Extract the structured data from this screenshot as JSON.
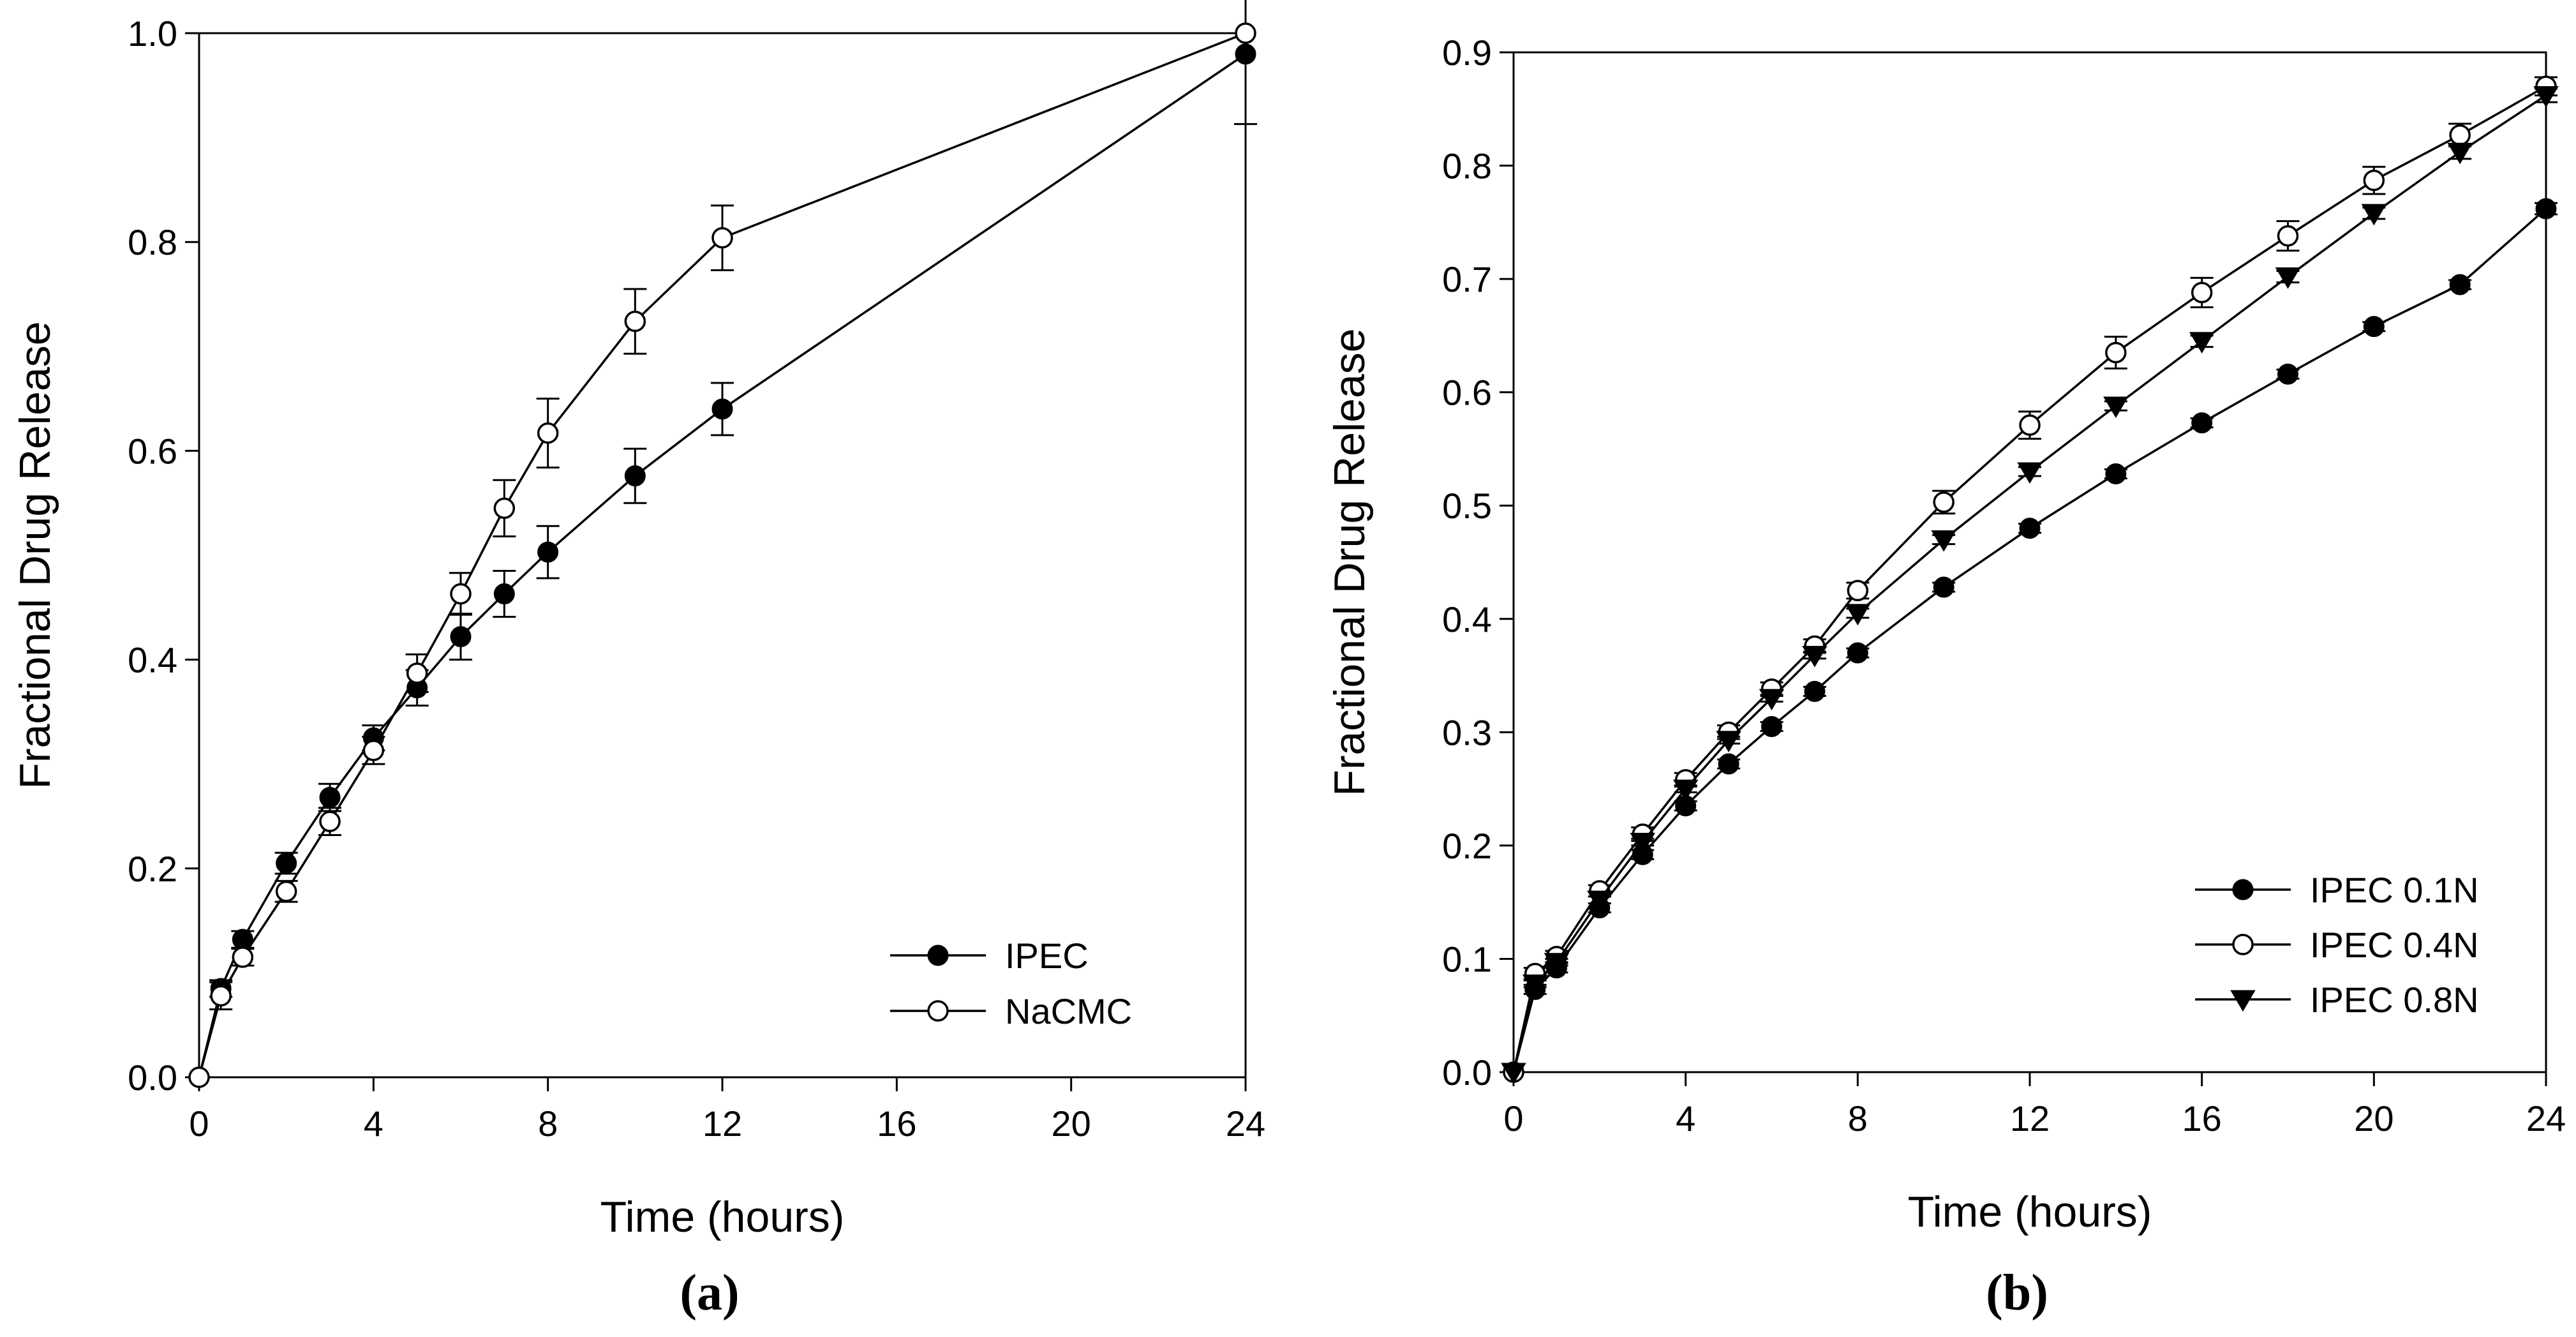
{
  "colors": {
    "axis": "#000000",
    "line": "#000000",
    "filled_marker": "#000000",
    "open_marker": "#ffffff"
  },
  "chart_data": [
    {
      "id": "a",
      "panel_label": "(a)",
      "type": "line",
      "xlabel": "Time (hours)",
      "ylabel": "Fractional Drug Release",
      "xlim": [
        0,
        24
      ],
      "ylim": [
        0,
        1.0
      ],
      "x_ticks": [
        0,
        4,
        8,
        12,
        16,
        20,
        24
      ],
      "y_ticks": [
        0.0,
        0.2,
        0.4,
        0.6,
        0.8,
        1.0
      ],
      "y_tick_labels": [
        "0.0",
        "0.2",
        "0.4",
        "0.6",
        "0.8",
        "1.0"
      ],
      "legend_position": "bottom-right",
      "series": [
        {
          "name": "IPEC",
          "marker": "filled-circle",
          "x": [
            0,
            0.5,
            1,
            2,
            3,
            4,
            5,
            6,
            7,
            8,
            10,
            12,
            24
          ],
          "y": [
            0.0,
            0.085,
            0.132,
            0.205,
            0.268,
            0.325,
            0.373,
            0.422,
            0.463,
            0.503,
            0.576,
            0.64,
            0.98
          ],
          "error": [
            0,
            0.008,
            0.008,
            0.01,
            0.013,
            0.012,
            0.017,
            0.022,
            0.022,
            0.025,
            0.026,
            0.025,
            0.067
          ]
        },
        {
          "name": "NaCMC",
          "marker": "open-circle",
          "x": [
            0,
            0.5,
            1,
            2,
            3,
            4,
            5,
            6,
            7,
            8,
            10,
            12,
            24
          ],
          "y": [
            0.0,
            0.078,
            0.115,
            0.178,
            0.245,
            0.313,
            0.387,
            0.463,
            0.545,
            0.617,
            0.724,
            0.804,
            1.0
          ],
          "error": [
            0,
            0.013,
            0.008,
            0.01,
            0.013,
            0.013,
            0.018,
            0.02,
            0.027,
            0.033,
            0.031,
            0.031,
            0.0
          ]
        }
      ]
    },
    {
      "id": "b",
      "panel_label": "(b)",
      "type": "line",
      "xlabel": "Time (hours)",
      "ylabel": "Fractional Drug Release",
      "xlim": [
        0,
        24
      ],
      "ylim": [
        0,
        0.9
      ],
      "x_ticks": [
        0,
        4,
        8,
        12,
        16,
        20,
        24
      ],
      "y_ticks": [
        0.0,
        0.1,
        0.2,
        0.3,
        0.4,
        0.5,
        0.6,
        0.7,
        0.8,
        0.9
      ],
      "y_tick_labels": [
        "0.0",
        "0.1",
        "0.2",
        "0.3",
        "0.4",
        "0.5",
        "0.6",
        "0.7",
        "0.8",
        "0.9"
      ],
      "legend_position": "bottom-right",
      "series": [
        {
          "name": "IPEC 0.1N",
          "marker": "filled-circle",
          "x": [
            0,
            0.5,
            1,
            2,
            3,
            4,
            5,
            6,
            7,
            8,
            10,
            12,
            14,
            16,
            18,
            20,
            22,
            24
          ],
          "y": [
            0.0,
            0.073,
            0.092,
            0.145,
            0.192,
            0.235,
            0.272,
            0.305,
            0.336,
            0.37,
            0.428,
            0.48,
            0.528,
            0.573,
            0.616,
            0.658,
            0.695,
            0.762
          ],
          "error": [
            0,
            0.004,
            0.004,
            0.004,
            0.004,
            0.004,
            0.004,
            0.004,
            0.004,
            0.004,
            0.004,
            0.004,
            0.004,
            0.004,
            0.004,
            0.004,
            0.004,
            0.005
          ]
        },
        {
          "name": "IPEC 0.4N",
          "marker": "open-circle",
          "x": [
            0,
            0.5,
            1,
            2,
            3,
            4,
            5,
            6,
            7,
            8,
            10,
            12,
            14,
            16,
            18,
            20,
            22,
            24
          ],
          "y": [
            0.0,
            0.087,
            0.102,
            0.16,
            0.21,
            0.258,
            0.3,
            0.338,
            0.376,
            0.425,
            0.503,
            0.571,
            0.635,
            0.688,
            0.738,
            0.787,
            0.827,
            0.87
          ],
          "error": [
            0,
            0.005,
            0.005,
            0.005,
            0.006,
            0.006,
            0.006,
            0.006,
            0.006,
            0.007,
            0.01,
            0.012,
            0.014,
            0.013,
            0.013,
            0.012,
            0.01,
            0.008
          ]
        },
        {
          "name": "IPEC 0.8N",
          "marker": "filled-triangle-down",
          "x": [
            0,
            0.5,
            1,
            2,
            3,
            4,
            5,
            6,
            7,
            8,
            10,
            12,
            14,
            16,
            18,
            20,
            22,
            24
          ],
          "y": [
            0.0,
            0.078,
            0.097,
            0.152,
            0.203,
            0.25,
            0.293,
            0.33,
            0.368,
            0.405,
            0.47,
            0.53,
            0.588,
            0.645,
            0.702,
            0.758,
            0.812,
            0.862
          ],
          "error": [
            0,
            0.003,
            0.003,
            0.003,
            0.003,
            0.003,
            0.003,
            0.003,
            0.003,
            0.004,
            0.004,
            0.004,
            0.004,
            0.005,
            0.005,
            0.005,
            0.006,
            0.006
          ]
        }
      ]
    }
  ]
}
